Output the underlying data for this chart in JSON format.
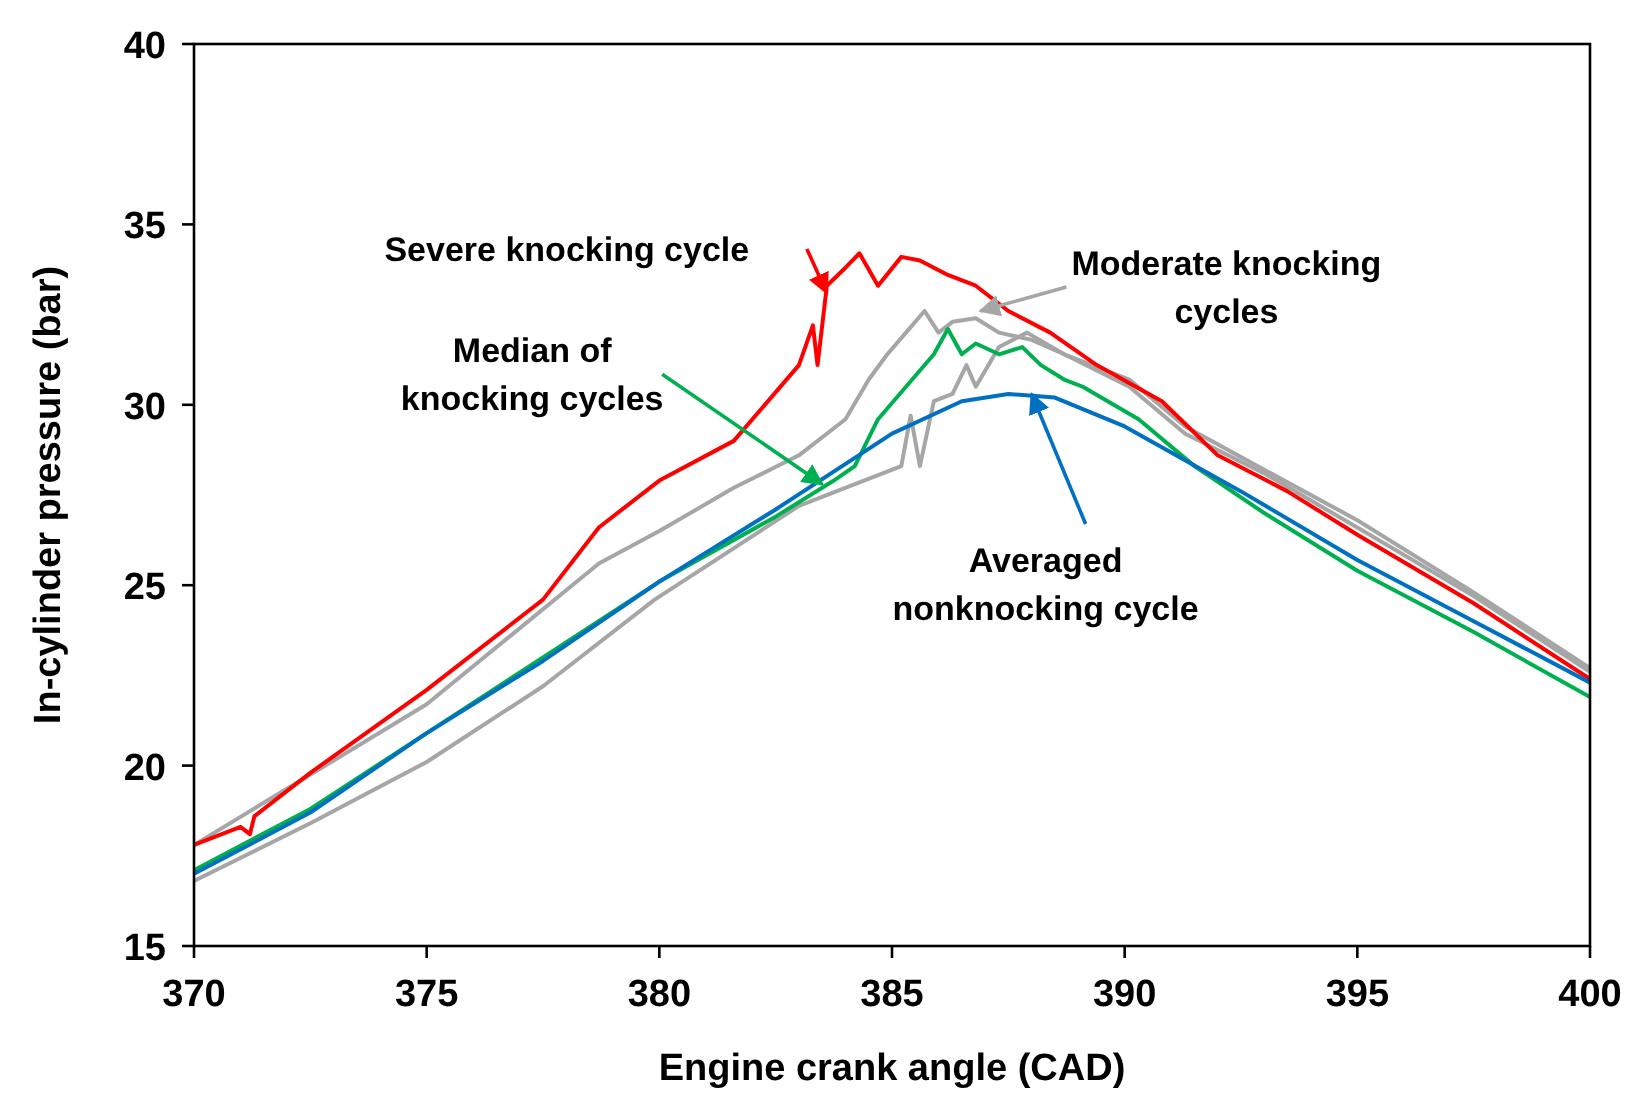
{
  "chart_data": {
    "type": "line",
    "xlabel": "Engine crank angle (CAD)",
    "ylabel": "In-cylinder pressure (bar)",
    "xlim": [
      370,
      400
    ],
    "xticks": [
      370,
      375,
      380,
      385,
      390,
      395,
      400
    ],
    "ylim": [
      15,
      40
    ],
    "yticks": [
      15,
      20,
      25,
      30,
      35,
      40
    ],
    "grid": false,
    "marker": "none",
    "line_style": "solid",
    "series": [
      {
        "color": "#a6a6a6",
        "x": [
          370,
          375,
          378.7,
          380,
          381.6,
          383,
          384,
          384.5,
          384.9,
          385.3,
          385.7,
          386,
          386.3,
          386.8,
          387.3,
          388,
          388.7,
          390.1,
          391.3,
          393,
          395,
          397.5,
          400
        ],
        "values": [
          17.8,
          21.7,
          25.6,
          26.5,
          27.7,
          28.6,
          29.6,
          30.7,
          31.4,
          32,
          32.6,
          32,
          32.3,
          32.4,
          32,
          31.8,
          31.4,
          30.5,
          29.2,
          28.1,
          26.6,
          24.7,
          22.6
        ]
      },
      {
        "color": "#a6a6a6",
        "x": [
          370,
          372.5,
          375,
          377.5,
          379.9,
          383,
          385.2,
          385.4,
          385.6,
          385.9,
          386.3,
          386.6,
          386.8,
          387.3,
          387.9,
          388.7,
          390.1,
          391.3,
          393,
          395,
          397.5,
          400
        ],
        "values": [
          16.8,
          18.4,
          20.1,
          22.2,
          24.6,
          27.2,
          28.3,
          29.7,
          28.3,
          30.1,
          30.3,
          31.1,
          30.5,
          31.6,
          32,
          31.4,
          30.7,
          29.4,
          28.2,
          26.8,
          24.8,
          22.7
        ]
      },
      {
        "color": "#ff0000",
        "x": [
          370,
          371,
          371.2,
          371.3,
          372.5,
          375,
          377.5,
          378.7,
          380,
          381.6,
          383,
          383.3,
          383.4,
          383.6,
          384,
          384.3,
          384.7,
          385.2,
          385.6,
          386.2,
          386.8,
          387.5,
          388.4,
          389.4,
          390.8,
          392,
          393.5,
          395,
          397.5,
          400
        ],
        "values": [
          17.8,
          18.3,
          18.1,
          18.6,
          19.8,
          22.1,
          24.6,
          26.6,
          27.9,
          29,
          31.1,
          32.2,
          31.1,
          33.3,
          33.8,
          34.2,
          33.3,
          34.1,
          34,
          33.6,
          33.3,
          32.6,
          32,
          31.1,
          30.1,
          28.6,
          27.6,
          26.4,
          24.5,
          22.4
        ]
      },
      {
        "color": "#00b050",
        "x": [
          370,
          372.5,
          375,
          377.5,
          380,
          382.5,
          383.75,
          384.2,
          384.7,
          385.3,
          385.9,
          386.2,
          386.5,
          386.8,
          387.3,
          387.8,
          388.2,
          388.7,
          389.1,
          390.3,
          391.5,
          393,
          395,
          397.5,
          400
        ],
        "values": [
          17.1,
          18.8,
          20.9,
          23,
          25.1,
          26.9,
          27.9,
          28.3,
          29.6,
          30.5,
          31.4,
          32.1,
          31.4,
          31.7,
          31.4,
          31.6,
          31.1,
          30.7,
          30.5,
          29.6,
          28.3,
          27,
          25.4,
          23.7,
          21.9
        ]
      },
      {
        "color": "#0070c0",
        "x": [
          370,
          372.5,
          375,
          377.5,
          380,
          382.5,
          385,
          386.5,
          387.5,
          388.5,
          390,
          392.5,
          395,
          397.5,
          400
        ],
        "values": [
          17,
          18.7,
          20.9,
          22.9,
          25.1,
          27.1,
          29.2,
          30.1,
          30.3,
          30.2,
          29.4,
          27.6,
          25.7,
          24,
          22.3
        ]
      }
    ],
    "annotations": [
      {
        "text": "Severe knocking cycle",
        "x": 383.6,
        "y": 33.1
      },
      {
        "text": "Moderate knocking cycles",
        "x": 386.9,
        "y": 32.6
      },
      {
        "text": "Median of knocking cycles",
        "x": 383.5,
        "y": 27.8
      },
      {
        "text": "Averaged nonknocking cycle",
        "x": 388,
        "y": 30.3
      }
    ]
  }
}
